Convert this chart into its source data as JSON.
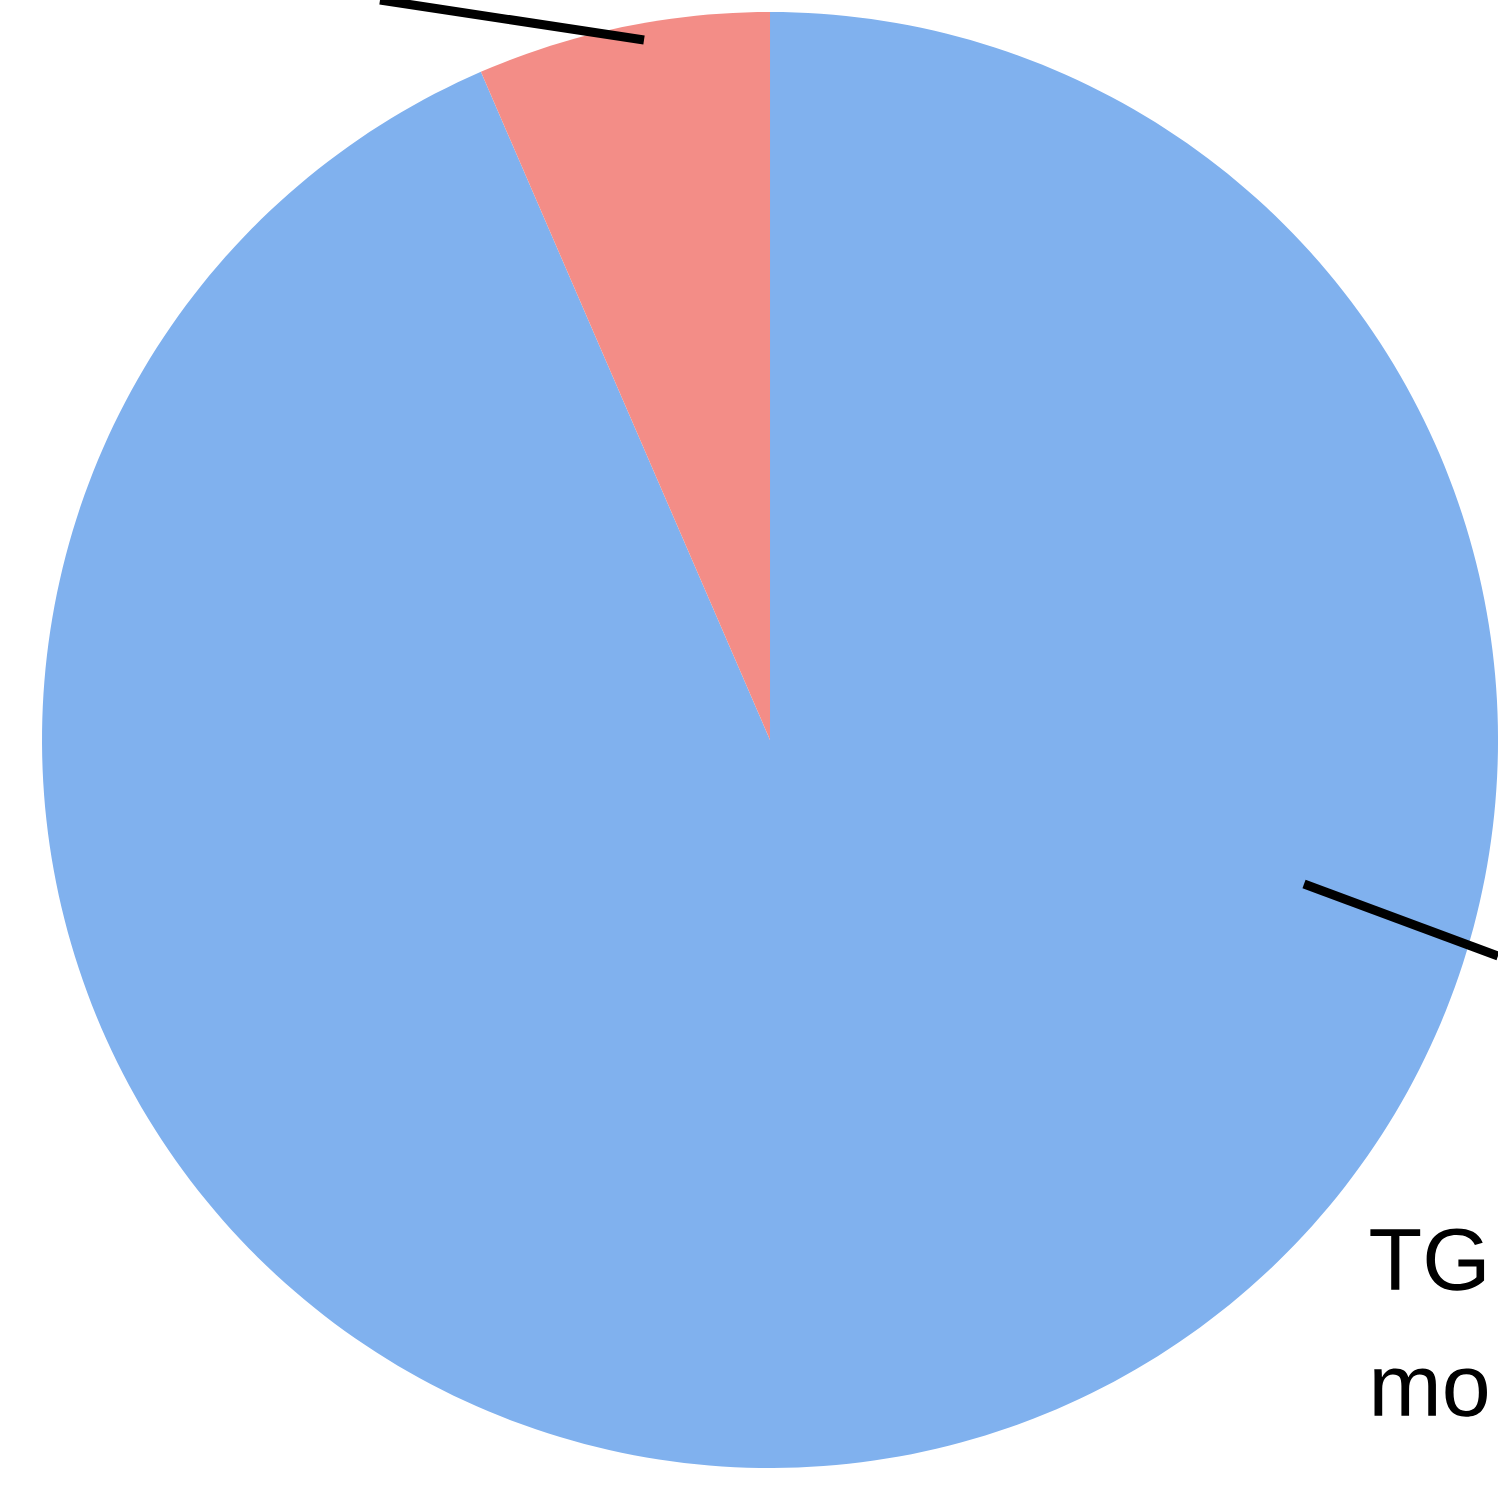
{
  "chart_data": {
    "type": "pie",
    "categories": [
      "TG mo",
      null
    ],
    "values": [
      93.5,
      6.5
    ],
    "colors": [
      "#80b1ee",
      "#f38d87"
    ]
  }
}
